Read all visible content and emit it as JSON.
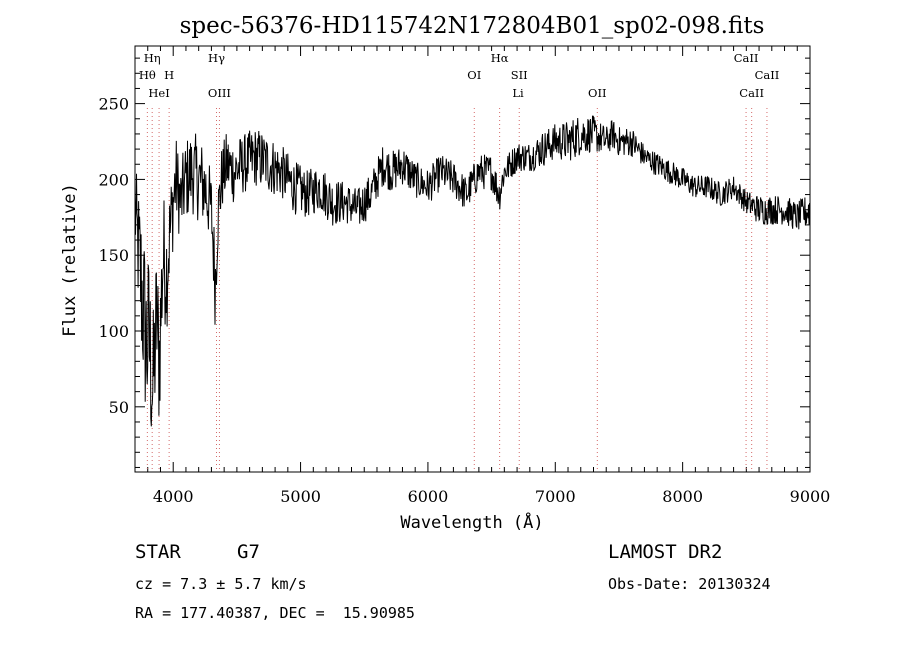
{
  "chart_data": {
    "type": "line",
    "title": "spec-56376-HD115742N172804B01_sp02-098.fits",
    "xlabel": "Wavelength (Å)",
    "ylabel": "Flux (relative)",
    "xlim": [
      3700,
      9000
    ],
    "ylim": [
      7,
      288
    ],
    "x_ticks": [
      4000,
      5000,
      6000,
      7000,
      8000,
      9000
    ],
    "y_ticks": [
      50,
      100,
      150,
      200,
      250
    ],
    "grid": false,
    "series": [
      {
        "color": "#000000",
        "x": [
          3700,
          3760,
          3790,
          3810,
          3840,
          3870,
          3890,
          3920,
          3950,
          3980,
          4020,
          4060,
          4100,
          4150,
          4200,
          4250,
          4300,
          4330,
          4350,
          4380,
          4420,
          4480,
          4550,
          4650,
          4750,
          4850,
          4950,
          5050,
          5150,
          5250,
          5350,
          5450,
          5550,
          5650,
          5720,
          5800,
          5900,
          6000,
          6100,
          6200,
          6300,
          6400,
          6500,
          6560,
          6600,
          6700,
          6800,
          6900,
          7000,
          7100,
          7200,
          7300,
          7400,
          7450,
          7500,
          7600,
          7700,
          7800,
          7900,
          8000,
          8100,
          8200,
          8300,
          8400,
          8500,
          8600,
          8700,
          8800,
          8900,
          9000
        ],
        "y": [
          180,
          120,
          90,
          95,
          60,
          110,
          80,
          150,
          140,
          170,
          200,
          185,
          200,
          205,
          200,
          195,
          180,
          130,
          175,
          200,
          210,
          205,
          210,
          215,
          210,
          205,
          195,
          190,
          195,
          185,
          185,
          180,
          190,
          210,
          205,
          210,
          200,
          195,
          205,
          200,
          190,
          205,
          205,
          190,
          205,
          215,
          215,
          220,
          225,
          225,
          230,
          230,
          225,
          230,
          225,
          225,
          215,
          210,
          205,
          200,
          195,
          195,
          190,
          195,
          185,
          180,
          180,
          180,
          175,
          180
        ],
        "noise": [
          30,
          60,
          60,
          60,
          50,
          50,
          50,
          45,
          40,
          32,
          30,
          26,
          28,
          28,
          28,
          28,
          25,
          30,
          25,
          22,
          22,
          22,
          20,
          20,
          20,
          18,
          18,
          16,
          16,
          16,
          14,
          14,
          14,
          14,
          14,
          14,
          12,
          12,
          12,
          12,
          12,
          12,
          12,
          12,
          10,
          10,
          10,
          12,
          12,
          14,
          14,
          12,
          10,
          10,
          10,
          10,
          8,
          8,
          8,
          8,
          8,
          8,
          8,
          8,
          8,
          10,
          10,
          10,
          10,
          12
        ]
      }
    ],
    "line_ids": [
      {
        "label": "Hη",
        "wave": 3835,
        "row": 0
      },
      {
        "label": "Hθ",
        "wave": 3797,
        "row": 1
      },
      {
        "label": "H",
        "wave": 3968,
        "row": 1
      },
      {
        "label": "HeI",
        "wave": 3889,
        "row": 2
      },
      {
        "label": "Hγ",
        "wave": 4340,
        "row": 0
      },
      {
        "label": "OIII",
        "wave": 4363,
        "row": 2
      },
      {
        "label": "OI",
        "wave": 6364,
        "row": 1
      },
      {
        "label": "Hα",
        "wave": 6563,
        "row": 0
      },
      {
        "label": "SII",
        "wave": 6717,
        "row": 1
      },
      {
        "label": "Li",
        "wave": 6708,
        "row": 2
      },
      {
        "label": "OII",
        "wave": 7330,
        "row": 2
      },
      {
        "label": "CaII",
        "wave": 8498,
        "row": 0
      },
      {
        "label": "CaII",
        "wave": 8662,
        "row": 1
      },
      {
        "label": "CaII",
        "wave": 8542,
        "row": 2
      }
    ],
    "line_markers": [
      3797,
      3835,
      3889,
      3968,
      4340,
      4363,
      6364,
      6563,
      6717,
      7330,
      8498,
      8542,
      8662
    ]
  },
  "info": {
    "class_label": "STAR",
    "subclass": "G7",
    "survey": "LAMOST DR2",
    "cz": "cz = 7.3 ± 5.7 km/s",
    "obs_date": "Obs-Date: 20130324",
    "coords": "RA = 177.40387, DEC =  15.90985"
  }
}
